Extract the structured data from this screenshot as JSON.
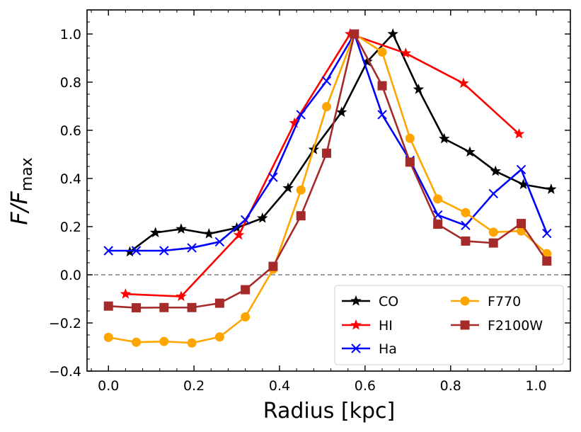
{
  "chart_data": {
    "type": "line",
    "xlabel": "Radius [kpc]",
    "ylabel": {
      "main": "F/F",
      "sub": "max"
    },
    "xlim": [
      -0.05,
      1.08
    ],
    "ylim": [
      -0.4,
      1.1
    ],
    "xticks": [
      0.0,
      0.2,
      0.4,
      0.6,
      0.8,
      1.0
    ],
    "xtick_labels": [
      "0.0",
      "0.2",
      "0.4",
      "0.6",
      "0.8",
      "1.0"
    ],
    "yticks": [
      -0.4,
      -0.2,
      0.0,
      0.2,
      0.4,
      0.6,
      0.8,
      1.0
    ],
    "ytick_labels": [
      "−0.4",
      "−0.2",
      "0.0",
      "0.2",
      "0.4",
      "0.6",
      "0.8",
      "1.0"
    ],
    "reference_line": {
      "y": 0.0,
      "style": "dashed",
      "color": "#808080"
    },
    "legend": {
      "position": "lower-right",
      "columns": 2
    },
    "series": [
      {
        "name": "CO",
        "color": "#000000",
        "marker": "star",
        "x": [
          0.05,
          0.11,
          0.17,
          0.235,
          0.3,
          0.36,
          0.42,
          0.48,
          0.545,
          0.605,
          0.665,
          0.725,
          0.785,
          0.845,
          0.905,
          0.97,
          1.035
        ],
        "y": [
          0.095,
          0.175,
          0.19,
          0.17,
          0.195,
          0.235,
          0.36,
          0.52,
          0.675,
          0.885,
          1.0,
          0.77,
          0.565,
          0.51,
          0.43,
          0.375,
          0.355
        ]
      },
      {
        "name": "HI",
        "color": "#ff0000",
        "marker": "star",
        "x": [
          0.04,
          0.17,
          0.305,
          0.435,
          0.565,
          0.695,
          0.83,
          0.96
        ],
        "y": [
          -0.08,
          -0.09,
          0.165,
          0.63,
          1.0,
          0.92,
          0.795,
          0.585
        ]
      },
      {
        "name": "Ha",
        "color": "#0000ff",
        "marker": "x",
        "x": [
          0.0,
          0.065,
          0.13,
          0.195,
          0.26,
          0.32,
          0.385,
          0.45,
          0.51,
          0.575,
          0.64,
          0.705,
          0.77,
          0.835,
          0.9,
          0.965,
          1.025
        ],
        "y": [
          0.1,
          0.1,
          0.1,
          0.112,
          0.137,
          0.228,
          0.405,
          0.665,
          0.805,
          1.0,
          0.665,
          0.475,
          0.248,
          0.205,
          0.337,
          0.437,
          0.172
        ]
      },
      {
        "name": "F770",
        "color": "#ffa500",
        "marker": "circle",
        "x": [
          0.0,
          0.065,
          0.13,
          0.195,
          0.26,
          0.32,
          0.385,
          0.45,
          0.51,
          0.575,
          0.64,
          0.705,
          0.77,
          0.835,
          0.9,
          0.965,
          1.025
        ],
        "y": [
          -0.26,
          -0.28,
          -0.277,
          -0.283,
          -0.258,
          -0.175,
          0.023,
          0.352,
          0.698,
          1.0,
          0.925,
          0.567,
          0.315,
          0.258,
          0.177,
          0.182,
          0.088
        ]
      },
      {
        "name": "F2100W",
        "color": "#a52a2a",
        "marker": "square",
        "x": [
          0.0,
          0.065,
          0.13,
          0.195,
          0.26,
          0.32,
          0.385,
          0.45,
          0.51,
          0.575,
          0.64,
          0.705,
          0.77,
          0.835,
          0.9,
          0.965,
          1.025
        ],
        "y": [
          -0.13,
          -0.137,
          -0.136,
          -0.136,
          -0.118,
          -0.062,
          0.035,
          0.245,
          0.505,
          1.0,
          0.785,
          0.468,
          0.21,
          0.14,
          0.132,
          0.213,
          0.057
        ]
      }
    ]
  }
}
